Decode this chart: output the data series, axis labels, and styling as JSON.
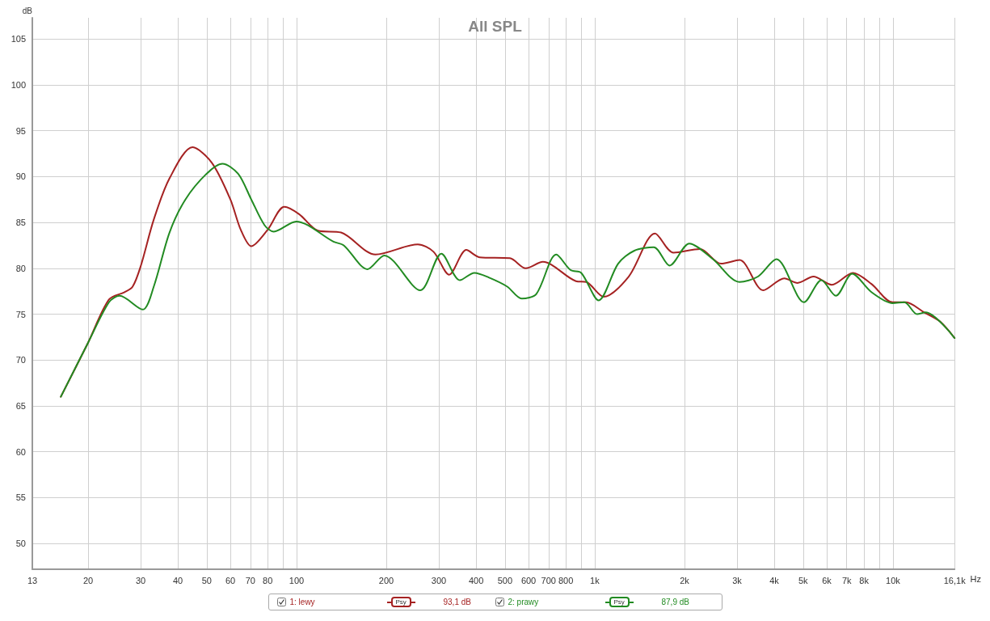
{
  "chart_data": {
    "type": "line",
    "title": "All SPL",
    "xlabel": "Hz",
    "ylabel": "dB",
    "log": "x",
    "grid": true,
    "legend": "bottom",
    "marker": "none",
    "line_style": "solid",
    "xlim": [
      13,
      16100
    ],
    "ylim": [
      47.2,
      107.3
    ],
    "xticks": [
      13,
      20,
      30,
      40,
      50,
      60,
      70,
      80,
      {
        "value": 90,
        "label": null
      },
      100,
      200,
      300,
      400,
      500,
      600,
      700,
      800,
      {
        "value": 900,
        "label": null
      },
      {
        "value": 1000,
        "label": "1k"
      },
      {
        "value": 2000,
        "label": "2k"
      },
      {
        "value": 3000,
        "label": "3k"
      },
      {
        "value": 4000,
        "label": "4k"
      },
      {
        "value": 5000,
        "label": "5k"
      },
      {
        "value": 6000,
        "label": "6k"
      },
      {
        "value": 7000,
        "label": "7k"
      },
      {
        "value": 8000,
        "label": "8k"
      },
      {
        "value": 9000,
        "label": null
      },
      {
        "value": 10000,
        "label": "10k"
      },
      {
        "value": 16100,
        "label": "16,1k"
      }
    ],
    "yticks": [
      50,
      55,
      60,
      65,
      70,
      75,
      80,
      85,
      90,
      95,
      100,
      105
    ],
    "annotations": [
      "Psy",
      "93,1 dB",
      "Psy",
      "87,9 dB"
    ],
    "series": [
      {
        "name": "1: lewy",
        "color": "#a52222",
        "x": [
          16.2,
          20,
          23.5,
          26.5,
          28.2,
          30,
          33.2,
          37.5,
          44.8,
          52,
          60,
          65,
          70.5,
          80,
          91,
          102,
          118,
          141,
          184,
          255,
          288,
          325,
          371,
          411,
          519,
          587,
          670,
          865,
          938,
          1071,
          1300,
          1593,
          1838,
          2253,
          2652,
          3058,
          3673,
          4324,
          4788,
          5413,
          6239,
          7345,
          8470,
          9970,
          11040,
          12730,
          14380,
          16100
        ],
        "values": [
          66.0,
          71.9,
          76.6,
          77.4,
          78.0,
          80.2,
          85.3,
          89.8,
          93.2,
          91.5,
          87.5,
          84.2,
          82.4,
          84.2,
          86.7,
          85.9,
          84.1,
          83.9,
          81.5,
          82.6,
          81.8,
          79.3,
          82.0,
          81.2,
          81.1,
          80.0,
          80.7,
          78.6,
          78.5,
          76.9,
          79.1,
          83.8,
          81.7,
          82.1,
          80.5,
          80.9,
          77.6,
          78.9,
          78.4,
          79.1,
          78.2,
          79.5,
          78.3,
          76.3,
          76.3,
          75.2,
          74.2,
          72.4
        ]
      },
      {
        "name": "2: prawy",
        "color": "#228b22",
        "x": [
          16.2,
          20,
          23.5,
          25.5,
          30.5,
          33.2,
          37.5,
          42.4,
          49.9,
          56.4,
          63.7,
          70.5,
          78.1,
          83.9,
          99.7,
          133,
          144,
          173,
          197,
          260,
          306,
          353,
          395,
          441,
          509,
          569,
          637,
          743,
          830,
          901,
          1031,
          1198,
          1354,
          1577,
          1782,
          2076,
          2491,
          3058,
          3528,
          4065,
          5037,
          5756,
          6435,
          7300,
          8470,
          9970,
          10920,
          12050,
          12860,
          16100
        ],
        "values": [
          66.0,
          71.9,
          76.3,
          77.0,
          75.5,
          78.0,
          83.9,
          87.5,
          90.3,
          91.4,
          90.3,
          87.5,
          84.7,
          84.0,
          85.1,
          82.9,
          82.5,
          79.9,
          81.4,
          77.6,
          81.6,
          78.7,
          79.5,
          79.0,
          78.0,
          76.7,
          77.2,
          81.5,
          79.8,
          79.5,
          76.5,
          80.5,
          81.9,
          82.3,
          80.3,
          82.7,
          81.0,
          78.5,
          79.1,
          81.0,
          76.3,
          78.7,
          77.0,
          79.4,
          77.4,
          76.2,
          76.3,
          75.0,
          75.2,
          72.4
        ]
      }
    ]
  }
}
